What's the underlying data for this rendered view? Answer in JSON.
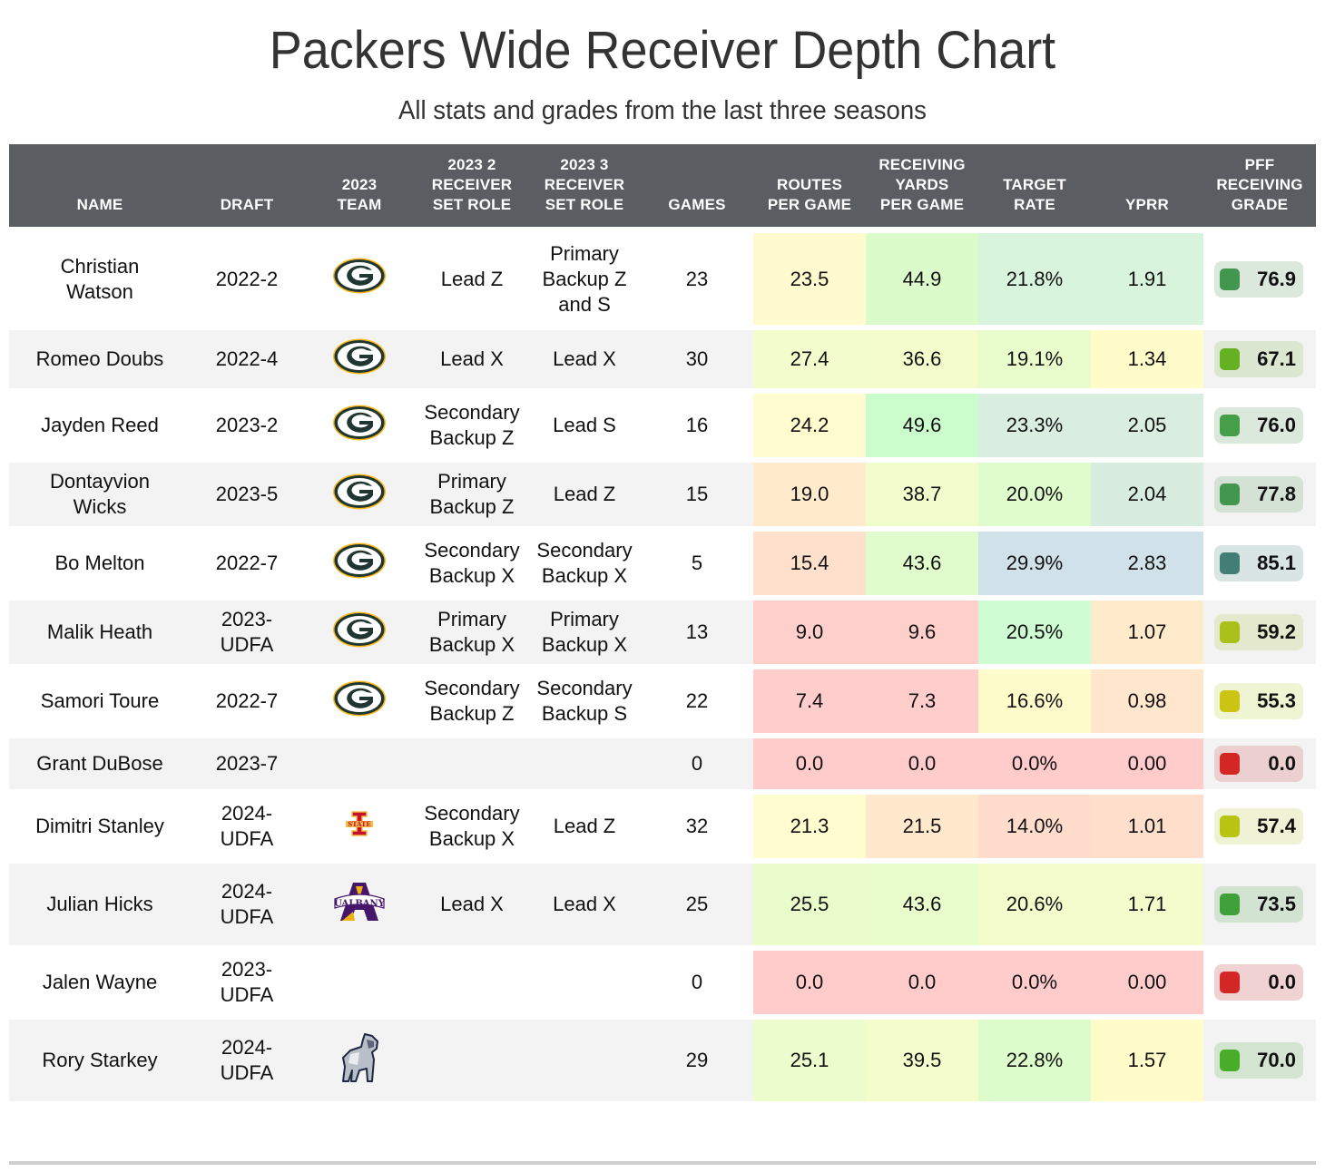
{
  "chart_data": {
    "type": "table",
    "title": "Packers Wide Receiver Depth Chart",
    "subtitle": "All stats and grades from the last three seasons",
    "columns": [
      "NAME",
      "DRAFT",
      "2023 TEAM",
      "2023 2 RECEIVER SET ROLE",
      "2023 3 RECEIVER SET ROLE",
      "GAMES",
      "ROUTES PER GAME",
      "RECEIVING YARDS PER GAME",
      "TARGET RATE",
      "YPRR",
      "PFF RECEIVING GRADE"
    ],
    "column_header_lines": [
      [
        "NAME"
      ],
      [
        "DRAFT"
      ],
      [
        "2023",
        "TEAM"
      ],
      [
        "2023 2",
        "RECEIVER",
        "SET ROLE"
      ],
      [
        "2023 3",
        "RECEIVER",
        "SET ROLE"
      ],
      [
        "GAMES"
      ],
      [
        "ROUTES",
        "PER GAME"
      ],
      [
        "RECEIVING",
        "YARDS",
        "PER GAME"
      ],
      [
        "TARGET",
        "RATE"
      ],
      [
        "YPRR"
      ],
      [
        "PFF",
        "RECEIVING",
        "GRADE"
      ]
    ],
    "rows": [
      {
        "name": [
          "Christian",
          "Watson"
        ],
        "draft": [
          "2022-2"
        ],
        "team": "packers-logo",
        "role2": [
          "Lead Z"
        ],
        "role3": [
          "Primary",
          "Backup Z",
          "and S"
        ],
        "games": "23",
        "routes": "23.5",
        "yards": "44.9",
        "target": "21.8%",
        "yprr": "1.91",
        "grade": "76.9",
        "colors": {
          "routes": "#fffbcf",
          "yards": "#dcfbcb",
          "target": "#d9f4dc",
          "yprr": "#d9f4dc",
          "grade_bg": "#dbe8dc",
          "grade_swatch": "#43964e"
        }
      },
      {
        "name": [
          "Romeo Doubs"
        ],
        "draft": [
          "2022-4"
        ],
        "team": "packers-logo",
        "role2": [
          "Lead X"
        ],
        "role3": [
          "Lead X"
        ],
        "games": "30",
        "routes": "27.4",
        "yards": "36.6",
        "target": "19.1%",
        "yprr": "1.34",
        "grade": "67.1",
        "colors": {
          "routes": "#f2fccc",
          "yards": "#f5fccc",
          "target": "#e9fccc",
          "yprr": "#fffcc9",
          "grade_bg": "#dce7d2",
          "grade_swatch": "#66b123"
        }
      },
      {
        "name": [
          "Jayden Reed"
        ],
        "draft": [
          "2023-2"
        ],
        "team": "packers-logo",
        "role2": [
          "Secondary",
          "Backup Z"
        ],
        "role3": [
          "Lead S"
        ],
        "games": "16",
        "routes": "24.2",
        "yards": "49.6",
        "target": "23.3%",
        "yprr": "2.05",
        "grade": "76.0",
        "colors": {
          "routes": "#fffccf",
          "yards": "#cbfccb",
          "target": "#d9ede1",
          "yprr": "#d9ede1",
          "grade_bg": "#dbe8dc",
          "grade_swatch": "#479e48"
        }
      },
      {
        "name": [
          "Dontayvion",
          "Wicks"
        ],
        "draft": [
          "2023-5"
        ],
        "team": "packers-logo",
        "role2": [
          "Primary",
          "Backup Z"
        ],
        "role3": [
          "Lead Z"
        ],
        "games": "15",
        "routes": "19.0",
        "yards": "38.7",
        "target": "20.0%",
        "yprr": "2.04",
        "grade": "77.8",
        "colors": {
          "routes": "#ffebcc",
          "yards": "#f0fccc",
          "target": "#dffccc",
          "yprr": "#d9ece0",
          "grade_bg": "#d3e2d5",
          "grade_swatch": "#43964e"
        }
      },
      {
        "name": [
          "Bo Melton"
        ],
        "draft": [
          "2022-7"
        ],
        "team": "packers-logo",
        "role2": [
          "Secondary",
          "Backup X"
        ],
        "role3": [
          "Secondary",
          "Backup X"
        ],
        "games": "5",
        "routes": "15.4",
        "yards": "43.6",
        "target": "29.9%",
        "yprr": "2.83",
        "grade": "85.1",
        "colors": {
          "routes": "#ffe0cc",
          "yards": "#e0fccc",
          "target": "#d1e1ea",
          "yprr": "#d1e1ea",
          "grade_bg": "#d8e5e2",
          "grade_swatch": "#427d76"
        }
      },
      {
        "name": [
          "Malik Heath"
        ],
        "draft": [
          "2023-",
          "UDFA"
        ],
        "team": "packers-logo",
        "role2": [
          "Primary",
          "Backup X"
        ],
        "role3": [
          "Primary",
          "Backup X"
        ],
        "games": "13",
        "routes": "9.0",
        "yards": "9.6",
        "target": "20.5%",
        "yprr": "1.07",
        "grade": "59.2",
        "colors": {
          "routes": "#ffcfcb",
          "yards": "#ffcfcb",
          "target": "#d0fcd3",
          "yprr": "#ffebcc",
          "grade_bg": "#e4e9cd",
          "grade_swatch": "#a9c11a"
        }
      },
      {
        "name": [
          "Samori Toure"
        ],
        "draft": [
          "2022-7"
        ],
        "team": "packers-logo",
        "role2": [
          "Secondary",
          "Backup Z"
        ],
        "role3": [
          "Secondary",
          "Backup S"
        ],
        "games": "22",
        "routes": "7.4",
        "yards": "7.3",
        "target": "16.6%",
        "yprr": "0.98",
        "grade": "55.3",
        "colors": {
          "routes": "#ffcdcb",
          "yards": "#ffcdcb",
          "target": "#fffccc",
          "yprr": "#ffe6cc",
          "grade_bg": "#eff4d2",
          "grade_swatch": "#cbc412"
        }
      },
      {
        "name": [
          "Grant DuBose"
        ],
        "draft": [
          "2023-7"
        ],
        "team": "",
        "role2": [
          ""
        ],
        "role3": [
          ""
        ],
        "games": "0",
        "routes": "0.0",
        "yards": "0.0",
        "target": "0.0%",
        "yprr": "0.00",
        "grade": "0.0",
        "colors": {
          "routes": "#ffcbcb",
          "yards": "#ffcbcb",
          "target": "#ffcbcb",
          "yprr": "#ffcbcb",
          "grade_bg": "#ecd0d0",
          "grade_swatch": "#d22725"
        }
      },
      {
        "name": [
          "Dimitri Stanley"
        ],
        "draft": [
          "2024-",
          "UDFA"
        ],
        "team": "iowa-state-logo",
        "role2": [
          "Secondary",
          "Backup X"
        ],
        "role3": [
          "Lead Z"
        ],
        "games": "32",
        "routes": "21.3",
        "yards": "21.5",
        "target": "14.0%",
        "yprr": "1.01",
        "grade": "57.4",
        "colors": {
          "routes": "#fffccf",
          "yards": "#ffe8cc",
          "target": "#ffdccc",
          "yprr": "#ffdfcc",
          "grade_bg": "#eff2d4",
          "grade_swatch": "#b9c313"
        }
      },
      {
        "name": [
          "Julian Hicks"
        ],
        "draft": [
          "2024-",
          "UDFA"
        ],
        "team": "albany-logo",
        "role2": [
          "Lead X"
        ],
        "role3": [
          "Lead X"
        ],
        "games": "25",
        "routes": "25.5",
        "yards": "43.6",
        "target": "20.6%",
        "yprr": "1.71",
        "grade": "73.5",
        "colors": {
          "routes": "#eafccc",
          "yards": "#e8fccc",
          "target": "#f5fccc",
          "yprr": "#f5fccc",
          "grade_bg": "#d3e3d2",
          "grade_swatch": "#40a03a"
        }
      },
      {
        "name": [
          "Jalen Wayne"
        ],
        "draft": [
          "2023-",
          "UDFA"
        ],
        "team": "",
        "role2": [
          ""
        ],
        "role3": [
          ""
        ],
        "games": "0",
        "routes": "0.0",
        "yards": "0.0",
        "target": "0.0%",
        "yprr": "0.00",
        "grade": "0.0",
        "colors": {
          "routes": "#ffcbcb",
          "yards": "#ffcbcb",
          "target": "#ffcbcb",
          "yprr": "#ffcbcb",
          "grade_bg": "#f1d2d2",
          "grade_swatch": "#d22725"
        }
      },
      {
        "name": [
          "Rory Starkey"
        ],
        "draft": [
          "2024-",
          "UDFA"
        ],
        "team": "samford-bulldog-logo",
        "role2": [
          ""
        ],
        "role3": [
          ""
        ],
        "games": "29",
        "routes": "25.1",
        "yards": "39.5",
        "target": "22.8%",
        "yprr": "1.57",
        "grade": "70.0",
        "colors": {
          "routes": "#ecfccc",
          "yards": "#f5fccc",
          "target": "#dcfccc",
          "yprr": "#fffcc9",
          "grade_bg": "#d3e5d0",
          "grade_swatch": "#4aad2a"
        }
      }
    ]
  },
  "colors": {
    "header_bg": "#5a5e63",
    "header_text": "#ffffff",
    "row_alt_bg": "#f3f3f3",
    "title_text": "#333333",
    "packers_green": "#203731",
    "packers_gold": "#ffb612"
  }
}
